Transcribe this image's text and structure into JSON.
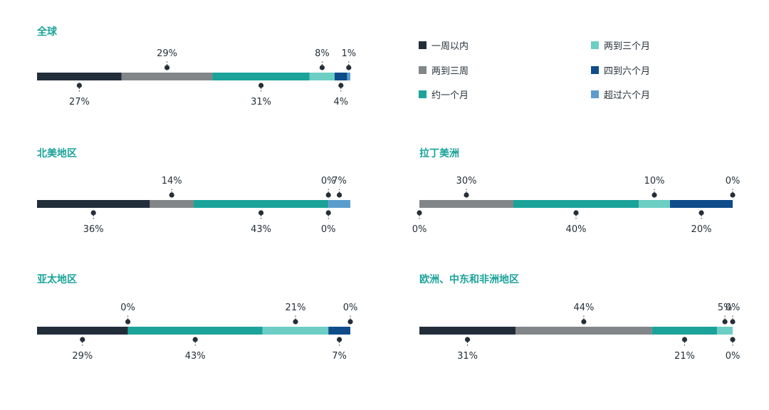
{
  "colors": {
    "within_week": "#222d3a",
    "two_three_weeks": "#828689",
    "about_month": "#1ba39a",
    "two_three_months": "#6ccec4",
    "four_six_months": "#0e4c8a",
    "over_six_months": "#5b9ccd",
    "title": "#1ba39a",
    "label": "#262f38"
  },
  "legend": [
    {
      "key": "within_week",
      "label": "一周以内"
    },
    {
      "key": "two_three_months",
      "label": "两到三个月"
    },
    {
      "key": "two_three_weeks",
      "label": "两到三周"
    },
    {
      "key": "four_six_months",
      "label": "四到六个月"
    },
    {
      "key": "about_month",
      "label": "约一个月"
    },
    {
      "key": "over_six_months",
      "label": "超过六个月"
    }
  ],
  "chart_data": [
    {
      "type": "bar",
      "stacked": true,
      "orientation": "horizontal",
      "title": "全球",
      "segments": [
        {
          "key": "within_week",
          "value": 27
        },
        {
          "key": "two_three_weeks",
          "value": 29
        },
        {
          "key": "about_month",
          "value": 31
        },
        {
          "key": "two_three_months",
          "value": 8
        },
        {
          "key": "four_six_months",
          "value": 4
        },
        {
          "key": "over_six_months",
          "value": 1
        }
      ]
    },
    {
      "type": "bar",
      "stacked": true,
      "orientation": "horizontal",
      "title": "北美地区",
      "segments": [
        {
          "key": "within_week",
          "value": 36
        },
        {
          "key": "two_three_weeks",
          "value": 14
        },
        {
          "key": "about_month",
          "value": 43
        },
        {
          "key": "two_three_months",
          "value": 0
        },
        {
          "key": "four_six_months",
          "value": 0
        },
        {
          "key": "over_six_months",
          "value": 7
        }
      ]
    },
    {
      "type": "bar",
      "stacked": true,
      "orientation": "horizontal",
      "title": "拉丁美洲",
      "segments": [
        {
          "key": "within_week",
          "value": 0
        },
        {
          "key": "two_three_weeks",
          "value": 30
        },
        {
          "key": "about_month",
          "value": 40
        },
        {
          "key": "two_three_months",
          "value": 10
        },
        {
          "key": "four_six_months",
          "value": 20
        },
        {
          "key": "over_six_months",
          "value": 0
        }
      ]
    },
    {
      "type": "bar",
      "stacked": true,
      "orientation": "horizontal",
      "title": "亚太地区",
      "segments": [
        {
          "key": "within_week",
          "value": 29
        },
        {
          "key": "two_three_weeks",
          "value": 0
        },
        {
          "key": "about_month",
          "value": 43
        },
        {
          "key": "two_three_months",
          "value": 21
        },
        {
          "key": "four_six_months",
          "value": 7
        },
        {
          "key": "over_six_months",
          "value": 0
        }
      ]
    },
    {
      "type": "bar",
      "stacked": true,
      "orientation": "horizontal",
      "title": "欧洲、中东和非洲地区",
      "segments": [
        {
          "key": "within_week",
          "value": 31
        },
        {
          "key": "two_three_weeks",
          "value": 44
        },
        {
          "key": "about_month",
          "value": 21
        },
        {
          "key": "two_three_months",
          "value": 5
        },
        {
          "key": "four_six_months",
          "value": 0
        },
        {
          "key": "over_six_months",
          "value": 0
        }
      ]
    }
  ]
}
